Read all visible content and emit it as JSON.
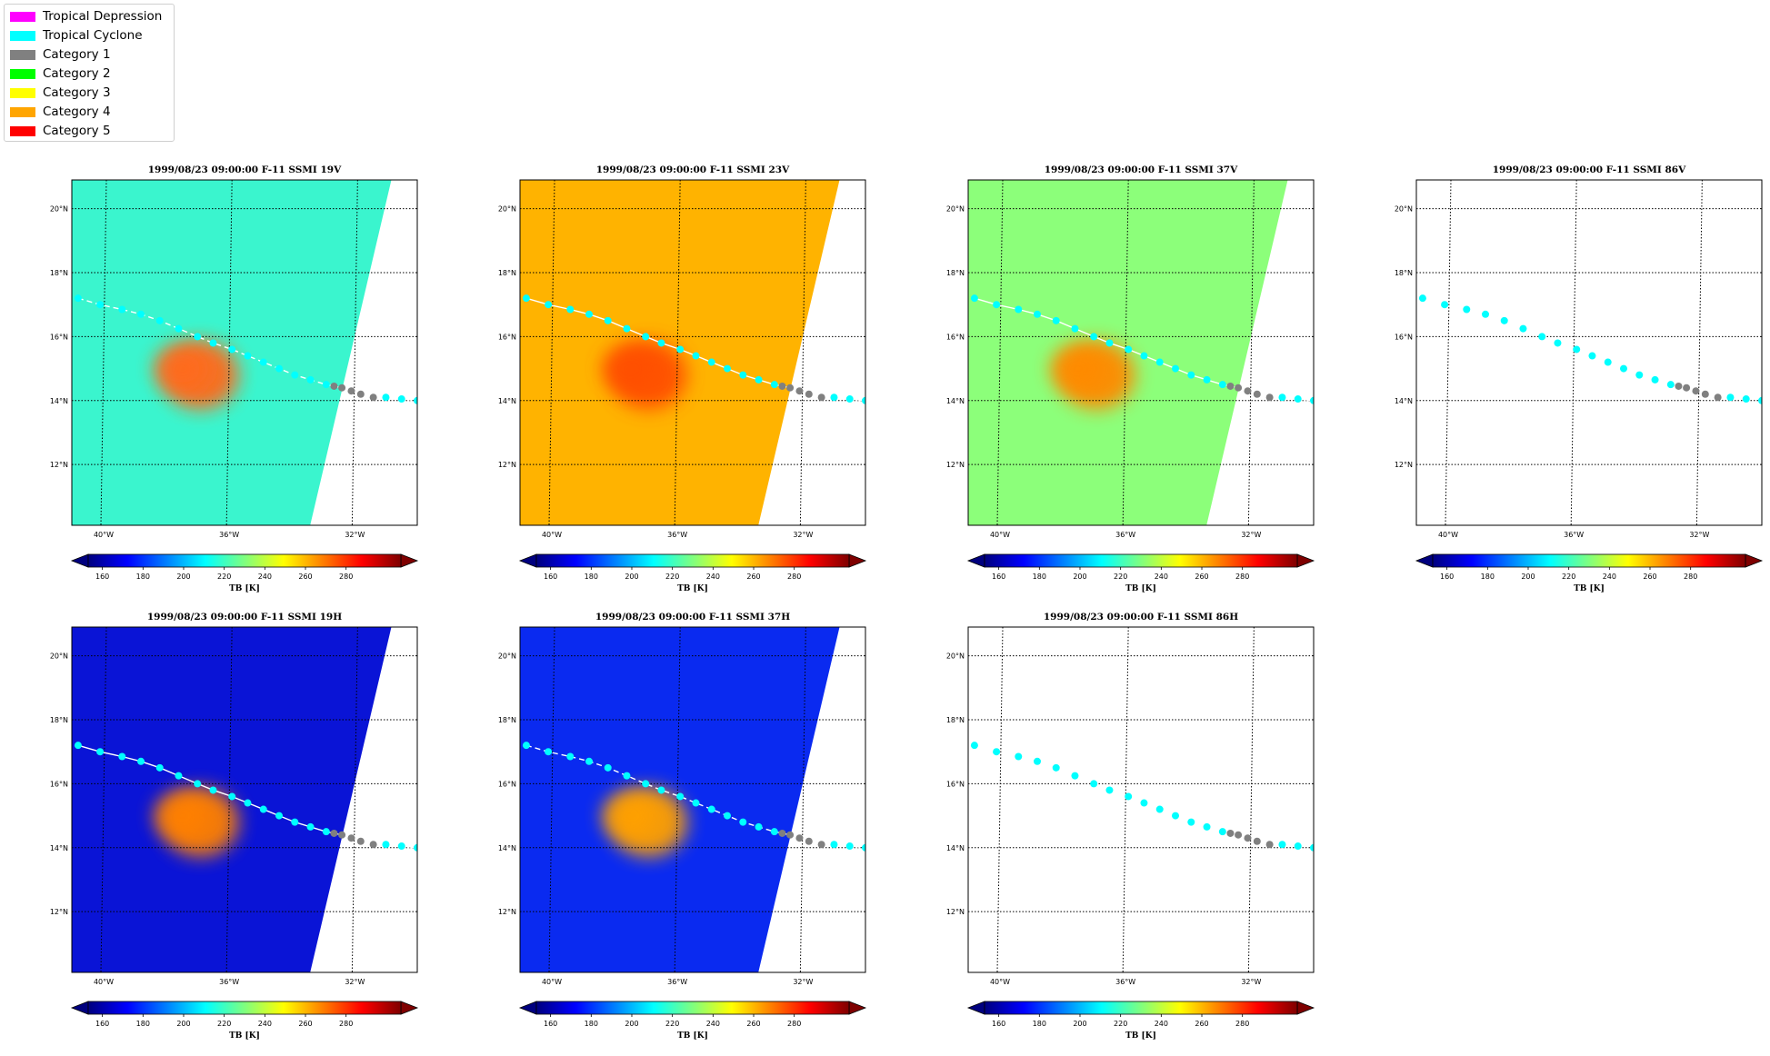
{
  "legend": {
    "items": [
      {
        "label": "Tropical Depression",
        "color": "#ff00ff"
      },
      {
        "label": "Tropical Cyclone",
        "color": "#00ffff"
      },
      {
        "label": "Category 1",
        "color": "#808080"
      },
      {
        "label": "Category 2",
        "color": "#00ff00"
      },
      {
        "label": "Category 3",
        "color": "#ffff00"
      },
      {
        "label": "Category 4",
        "color": "#ffa500"
      },
      {
        "label": "Category 5",
        "color": "#ff0000"
      }
    ]
  },
  "chart_data": [
    {
      "type": "heatmap",
      "title": "1999/08/23 09:00:00  F-11 SSMI 19V",
      "channel": "19V",
      "background": "#3af5ce",
      "has_swath": true,
      "track_line": "dashed",
      "warm_core": "#ff6a1a",
      "colorbar_label": "TB [K]"
    },
    {
      "type": "heatmap",
      "title": "1999/08/23 09:00:00  F-11 SSMI 23V",
      "channel": "23V",
      "background": "#ffb300",
      "has_swath": true,
      "track_line": "solid",
      "warm_core": "#ff5000",
      "colorbar_label": "TB [K]"
    },
    {
      "type": "heatmap",
      "title": "1999/08/23 09:00:00  F-11 SSMI 37V",
      "channel": "37V",
      "background": "#8cff7a",
      "has_swath": true,
      "track_line": "solid",
      "warm_core": "#ff8a00",
      "colorbar_label": "TB [K]"
    },
    {
      "type": "heatmap",
      "title": "1999/08/23 09:00:00  F-11 SSMI 86V",
      "channel": "86V",
      "background": "#ffffff",
      "has_swath": false,
      "track_line": "none",
      "warm_core": "",
      "colorbar_label": "TB [K]"
    },
    {
      "type": "heatmap",
      "title": "1999/08/23 09:00:00  F-11 SSMI 19H",
      "channel": "19H",
      "background": "#0a14d6",
      "has_swath": true,
      "track_line": "solid",
      "warm_core": "#ff8000",
      "colorbar_label": "TB [K]"
    },
    {
      "type": "heatmap",
      "title": "1999/08/23 09:00:00  F-11 SSMI 37H",
      "channel": "37H",
      "background": "#0a2af0",
      "has_swath": true,
      "track_line": "dashed",
      "warm_core": "#ffa000",
      "colorbar_label": "TB [K]"
    },
    {
      "type": "heatmap",
      "title": "1999/08/23 09:00:00  F-11 SSMI 86H",
      "channel": "86H",
      "background": "#ffffff",
      "has_swath": false,
      "track_line": "none",
      "warm_core": "",
      "colorbar_label": "TB [K]"
    }
  ],
  "axes": {
    "lat_ticks": [
      12,
      14,
      16,
      18,
      20
    ],
    "lat_labels": [
      "12°N",
      "14°N",
      "16°N",
      "18°N",
      "20°N"
    ],
    "lon_ticks": [
      -40,
      -36,
      -32
    ],
    "lon_labels": [
      "40°W",
      "36°W",
      "32°W"
    ],
    "xlim": [
      -41.1,
      -30.1
    ],
    "ylim": [
      10.1,
      20.9
    ]
  },
  "colorbar": {
    "ticks": [
      160,
      180,
      200,
      220,
      240,
      260,
      280
    ],
    "range": [
      153,
      307
    ],
    "colors": [
      "#00007f",
      "#0000ff",
      "#007fff",
      "#00ffff",
      "#7fff7f",
      "#ffff00",
      "#ff7f00",
      "#ff0000",
      "#7f0000"
    ]
  },
  "track": [
    {
      "lon": -40.9,
      "lat": 17.2,
      "cat": "Tropical Cyclone"
    },
    {
      "lon": -40.2,
      "lat": 17.0,
      "cat": "Tropical Cyclone"
    },
    {
      "lon": -39.5,
      "lat": 16.85,
      "cat": "Tropical Cyclone"
    },
    {
      "lon": -38.9,
      "lat": 16.7,
      "cat": "Tropical Cyclone"
    },
    {
      "lon": -38.3,
      "lat": 16.5,
      "cat": "Tropical Cyclone"
    },
    {
      "lon": -37.7,
      "lat": 16.25,
      "cat": "Tropical Cyclone"
    },
    {
      "lon": -37.1,
      "lat": 16.0,
      "cat": "Tropical Cyclone"
    },
    {
      "lon": -36.6,
      "lat": 15.8,
      "cat": "Tropical Cyclone"
    },
    {
      "lon": -36.0,
      "lat": 15.6,
      "cat": "Tropical Cyclone"
    },
    {
      "lon": -35.5,
      "lat": 15.4,
      "cat": "Tropical Cyclone"
    },
    {
      "lon": -35.0,
      "lat": 15.2,
      "cat": "Tropical Cyclone"
    },
    {
      "lon": -34.5,
      "lat": 15.0,
      "cat": "Tropical Cyclone"
    },
    {
      "lon": -34.0,
      "lat": 14.8,
      "cat": "Tropical Cyclone"
    },
    {
      "lon": -33.5,
      "lat": 14.65,
      "cat": "Tropical Cyclone"
    },
    {
      "lon": -33.0,
      "lat": 14.5,
      "cat": "Tropical Cyclone"
    },
    {
      "lon": -32.75,
      "lat": 14.45,
      "cat": "Category 1"
    },
    {
      "lon": -32.5,
      "lat": 14.4,
      "cat": "Category 1"
    },
    {
      "lon": -32.2,
      "lat": 14.3,
      "cat": "Category 1"
    },
    {
      "lon": -31.9,
      "lat": 14.2,
      "cat": "Category 1"
    },
    {
      "lon": -31.5,
      "lat": 14.1,
      "cat": "Category 1"
    },
    {
      "lon": -31.1,
      "lat": 14.1,
      "cat": "Tropical Cyclone"
    },
    {
      "lon": -30.6,
      "lat": 14.05,
      "cat": "Tropical Cyclone"
    },
    {
      "lon": -30.1,
      "lat": 14.0,
      "cat": "Tropical Cyclone"
    }
  ]
}
